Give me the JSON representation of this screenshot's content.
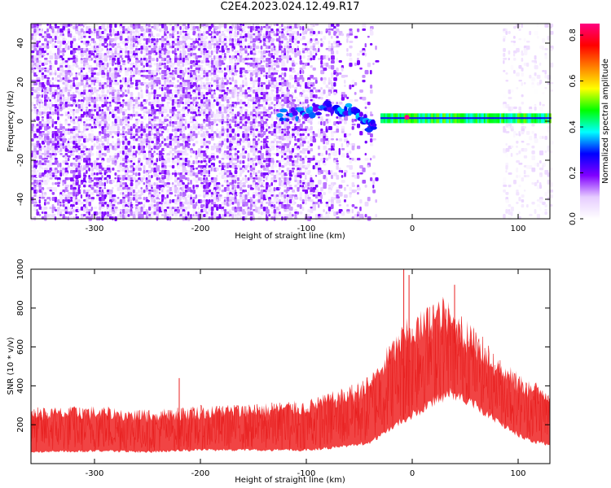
{
  "page": {
    "title": "C2E4.2023.024.12.49.R17"
  },
  "chart_data": [
    {
      "type": "heatmap",
      "xlabel": "Height of straight line (km)",
      "ylabel": "Frequency (Hz)",
      "xlim": [
        -360,
        130
      ],
      "ylim": [
        -50,
        50
      ],
      "x_ticks": [
        -300,
        -200,
        -100,
        0,
        100
      ],
      "y_ticks": [
        -40,
        -20,
        0,
        20,
        40
      ],
      "colorbar": {
        "label": "Normalized spectral amplitude",
        "range": [
          0.0,
          0.85
        ],
        "ticks": [
          0.0,
          0.2,
          0.4,
          0.6,
          0.8
        ],
        "colors": [
          "#ffffff",
          "#e6ccff",
          "#8000ff",
          "#0000ff",
          "#00ffff",
          "#00ff00",
          "#ffff00",
          "#ff8000",
          "#ff0000",
          "#ff0080"
        ]
      },
      "features": {
        "noise_band": {
          "x_range": [
            -360,
            -35
          ],
          "y_range": [
            -50,
            50
          ],
          "amplitude_range": [
            0.02,
            0.2
          ],
          "dominant_color": "#8000ff"
        },
        "clear_band": {
          "x_range": [
            -35,
            85
          ],
          "y_range": [
            -50,
            50
          ]
        },
        "faint_noise_band": {
          "x_range": [
            85,
            130
          ],
          "y_range": [
            -50,
            50
          ],
          "amplitude_range": [
            0.0,
            0.08
          ]
        },
        "descending_track": {
          "x": [
            -125,
            -100,
            -80,
            -60,
            -45,
            -35
          ],
          "y": [
            3,
            5,
            8,
            6,
            0,
            -4
          ],
          "amplitude": 0.28
        },
        "signal_line": {
          "x_range": [
            -30,
            130
          ],
          "y": 1,
          "amplitude": 0.45,
          "peak": {
            "x": -5,
            "y": 2,
            "amplitude": 0.85
          }
        }
      }
    },
    {
      "type": "line",
      "xlabel": "Height of straight line (km)",
      "ylabel": "SNR (10 * v/v)",
      "xlim": [
        -360,
        130
      ],
      "ylim": [
        0,
        1000
      ],
      "x_ticks": [
        -300,
        -200,
        -100,
        0,
        100
      ],
      "y_ticks": [
        200,
        400,
        600,
        800,
        1000
      ],
      "series_color": "#f03030",
      "envelope": {
        "x": [
          -360,
          -300,
          -250,
          -200,
          -150,
          -100,
          -60,
          -40,
          -30,
          -20,
          -10,
          0,
          10,
          20,
          30,
          40,
          50,
          60,
          80,
          100,
          115,
          130
        ],
        "lower": [
          60,
          65,
          60,
          70,
          70,
          70,
          90,
          110,
          140,
          180,
          220,
          250,
          280,
          320,
          350,
          360,
          330,
          300,
          220,
          150,
          110,
          100
        ],
        "upper": [
          290,
          300,
          280,
          300,
          310,
          330,
          400,
          460,
          550,
          640,
          720,
          780,
          800,
          850,
          870,
          800,
          760,
          700,
          560,
          470,
          430,
          400
        ]
      },
      "spikes": [
        {
          "x": -3,
          "y": 970
        },
        {
          "x": -8,
          "y": 1000
        },
        {
          "x": 40,
          "y": 920
        },
        {
          "x": -220,
          "y": 440
        }
      ]
    }
  ]
}
